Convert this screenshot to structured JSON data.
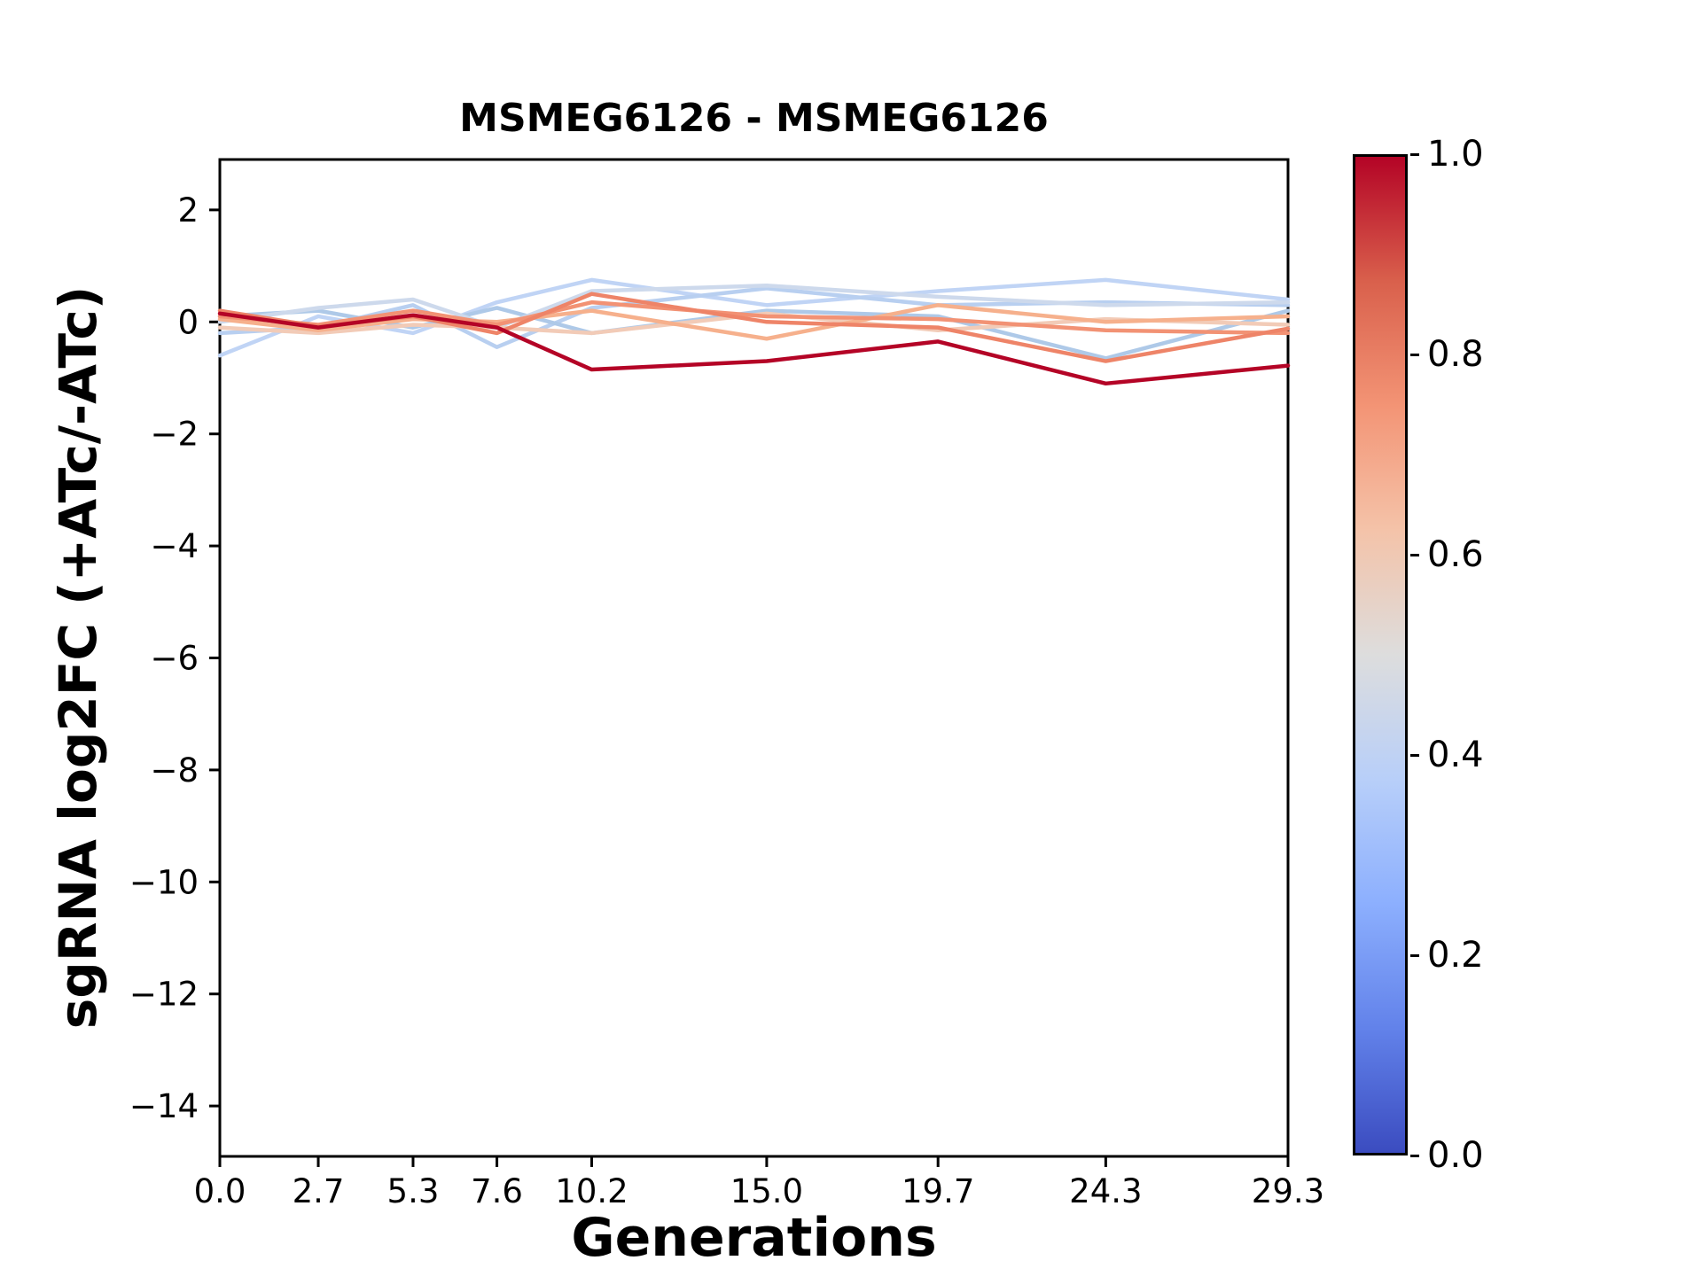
{
  "chart_data": {
    "type": "line",
    "title": "MSMEG6126 - MSMEG6126",
    "xlabel": "Generations",
    "ylabel": "sgRNA log2FC (+ATc/-ATc)",
    "xlim": [
      0,
      29.3
    ],
    "ylim": [
      -14.9,
      2.9
    ],
    "grid": false,
    "x": [
      0.0,
      2.7,
      5.3,
      7.6,
      10.2,
      15.0,
      19.7,
      24.3,
      29.3
    ],
    "xtick_labels": [
      "0.0",
      "2.7",
      "5.3",
      "7.6",
      "10.2",
      "15.0",
      "19.7",
      "24.3",
      "29.3"
    ],
    "ytick_values": [
      2,
      0,
      -2,
      -4,
      -6,
      -8,
      -10,
      -12,
      -14
    ],
    "ytick_labels": [
      "2",
      "0",
      "−2",
      "−4",
      "−6",
      "−8",
      "−10",
      "−12",
      "−14"
    ],
    "series": [
      {
        "colormap_value": 0.4,
        "color": "#c0d4f5",
        "values": [
          -0.6,
          0.1,
          -0.2,
          0.35,
          0.75,
          0.3,
          0.55,
          0.75,
          0.4
        ]
      },
      {
        "colormap_value": 0.42,
        "color": "#b8cff0",
        "values": [
          -0.2,
          -0.1,
          0.3,
          -0.45,
          0.25,
          0.6,
          0.3,
          0.35,
          0.3
        ]
      },
      {
        "colormap_value": 0.38,
        "color": "#aec9e8",
        "values": [
          0.1,
          0.2,
          -0.1,
          0.25,
          -0.2,
          0.2,
          0.1,
          -0.65,
          0.2
        ]
      },
      {
        "colormap_value": 0.45,
        "color": "#cdd9ec",
        "values": [
          0.0,
          0.25,
          0.4,
          -0.1,
          0.55,
          0.65,
          0.45,
          0.3,
          0.35
        ]
      },
      {
        "colormap_value": 0.6,
        "color": "#f2cbb7",
        "values": [
          -0.1,
          -0.2,
          -0.05,
          -0.1,
          -0.2,
          0.15,
          -0.15,
          0.05,
          -0.05
        ]
      },
      {
        "colormap_value": 0.65,
        "color": "#f6b08c",
        "values": [
          0.05,
          -0.15,
          0.05,
          0.0,
          0.2,
          -0.3,
          0.3,
          0.0,
          0.1
        ]
      },
      {
        "colormap_value": 0.75,
        "color": "#f29274",
        "values": [
          0.1,
          -0.05,
          0.2,
          -0.05,
          0.35,
          0.1,
          0.05,
          -0.15,
          -0.2
        ]
      },
      {
        "colormap_value": 0.8,
        "color": "#ee8468",
        "values": [
          0.2,
          -0.08,
          0.1,
          -0.2,
          0.5,
          0.0,
          -0.1,
          -0.7,
          -0.12
        ]
      },
      {
        "colormap_value": 1.0,
        "color": "#b40426",
        "values": [
          0.15,
          -0.1,
          0.12,
          -0.1,
          -0.85,
          -0.7,
          -0.35,
          -1.1,
          -0.78
        ]
      }
    ],
    "colorbar": {
      "tick_labels": [
        "0.0",
        "0.2",
        "0.4",
        "0.6",
        "0.8",
        "1.0"
      ],
      "tick_values": [
        0.0,
        0.2,
        0.4,
        0.6,
        0.8,
        1.0
      ],
      "gradient": [
        {
          "pos": 0.0,
          "color": "#3b4cc0"
        },
        {
          "pos": 0.125,
          "color": "#6282ea"
        },
        {
          "pos": 0.25,
          "color": "#8caffe"
        },
        {
          "pos": 0.375,
          "color": "#b8cff9"
        },
        {
          "pos": 0.5,
          "color": "#dddddd"
        },
        {
          "pos": 0.625,
          "color": "#f4c3a9"
        },
        {
          "pos": 0.75,
          "color": "#f39475"
        },
        {
          "pos": 0.875,
          "color": "#d9604c"
        },
        {
          "pos": 1.0,
          "color": "#b40426"
        }
      ]
    }
  }
}
